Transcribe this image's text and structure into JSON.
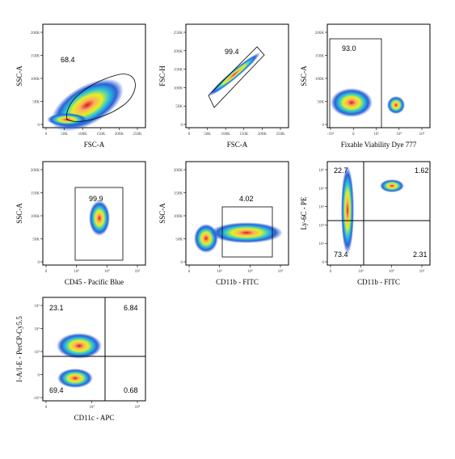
{
  "panels": [
    {
      "x_label": "FSC-A",
      "y_label": "SSC-A",
      "x_ticks": [
        "0",
        "50K",
        "100K",
        "150K",
        "200K",
        "250K"
      ],
      "y_ticks": [
        "0",
        "50K",
        "100K",
        "150K",
        "200K"
      ],
      "gates": [
        "68.4"
      ]
    },
    {
      "x_label": "FSC-A",
      "y_label": "FSC-H",
      "x_ticks": [
        "0",
        "50K",
        "100K",
        "150K",
        "200K",
        "250K"
      ],
      "y_ticks": [
        "0",
        "50K",
        "100K",
        "150K",
        "200K",
        "250K"
      ],
      "gates": [
        "99.4"
      ]
    },
    {
      "x_label": "Fixable Viability Dye 777",
      "y_label": "SSC-A",
      "x_ticks": [
        "-10³",
        "0",
        "10³",
        "10⁴",
        "10⁵"
      ],
      "y_ticks": [
        "0",
        "50K",
        "100K",
        "150K",
        "200K"
      ],
      "gates": [
        "93.0"
      ]
    },
    {
      "x_label": "CD45 - Pacific Blue",
      "y_label": "SSC-A",
      "x_ticks": [
        "0",
        "10³",
        "10⁴",
        "10⁵"
      ],
      "y_ticks": [
        "0",
        "50K",
        "100K",
        "150K",
        "200K"
      ],
      "gates": [
        "99.9"
      ]
    },
    {
      "x_label": "CD11b - FITC",
      "y_label": "SSC-A",
      "x_ticks": [
        "0",
        "10³",
        "10⁴",
        "10⁵"
      ],
      "y_ticks": [
        "0",
        "50K",
        "100K",
        "150K",
        "200K"
      ],
      "gates": [
        "4.02"
      ]
    },
    {
      "x_label": "CD11b - FITC",
      "y_label": "Ly-6C - PE",
      "x_ticks": [
        "0",
        "10³",
        "10⁴",
        "10⁵"
      ],
      "y_ticks": [
        "0",
        "10²",
        "10³",
        "10⁴",
        "10⁵",
        "10⁶"
      ],
      "gates": [
        "22.7",
        "1.62",
        "73.4",
        "2.31"
      ]
    },
    {
      "x_label": "CD11c - APC",
      "y_label": "I-A/I-E - PerCP-Cy5.5",
      "x_ticks": [
        "0",
        "10³",
        "10⁴"
      ],
      "y_ticks": [
        "-10³",
        "0",
        "10³",
        "10⁴",
        "10⁵"
      ],
      "gates": [
        "23.1",
        "6.84",
        "69.4",
        "0.68"
      ]
    }
  ]
}
